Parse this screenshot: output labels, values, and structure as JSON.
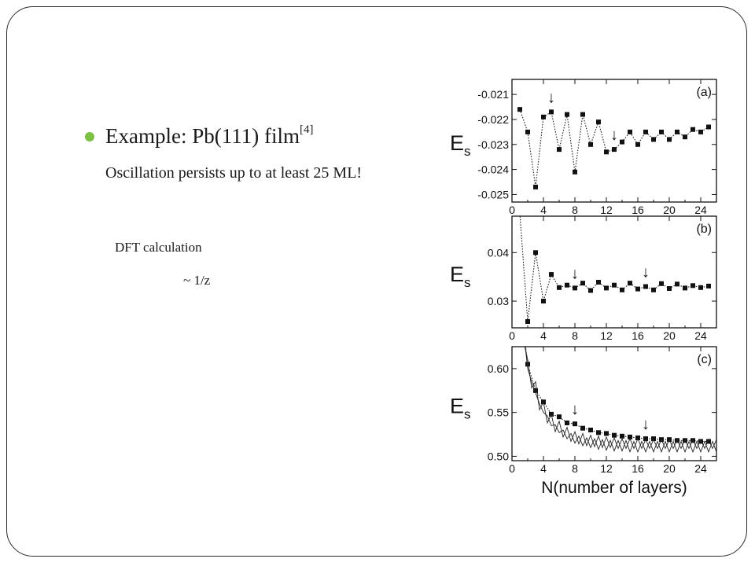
{
  "slide": {
    "bullet_main": "Example: Pb(111) film",
    "bullet_ref": "[4]",
    "subline": "Oscillation  persists up to at least 25 ML!",
    "dft_label": "DFT calculation",
    "approx_label": "~ 1/z",
    "bullet_color": "#7cc242"
  },
  "chart_data": [
    {
      "type": "line",
      "panel_label": "(a)",
      "ylabel_main": "E",
      "ylabel_sub": "s",
      "xlim": [
        0,
        26
      ],
      "ylim": [
        -0.0253,
        -0.0204
      ],
      "xticks": [
        0,
        4,
        8,
        12,
        16,
        20,
        24
      ],
      "xtick_labels": [
        "0",
        "4",
        "8",
        "12",
        "16",
        "20",
        "24"
      ],
      "yticks": [
        -0.025,
        -0.024,
        -0.023,
        -0.022,
        -0.021
      ],
      "ytick_labels": [
        "-0.025",
        "-0.024",
        "-0.023",
        "-0.022",
        "-0.021"
      ],
      "arrows_x": [
        5,
        13
      ],
      "arrow_glyph": "↓",
      "series": [
        {
          "style": "dotted-squares",
          "x": [
            1,
            2,
            3,
            4,
            5,
            6,
            7,
            8,
            9,
            10,
            11,
            12,
            13,
            14,
            15,
            16,
            17,
            18,
            19,
            20,
            21,
            22,
            23,
            24,
            25
          ],
          "y": [
            -0.0216,
            -0.0225,
            -0.0247,
            -0.0219,
            -0.0217,
            -0.0232,
            -0.0218,
            -0.0241,
            -0.0218,
            -0.023,
            -0.0221,
            -0.0233,
            -0.0232,
            -0.0229,
            -0.0225,
            -0.023,
            -0.0225,
            -0.0228,
            -0.0225,
            -0.0228,
            -0.0225,
            -0.0227,
            -0.0224,
            -0.0225,
            -0.0223
          ]
        }
      ]
    },
    {
      "type": "line",
      "panel_label": "(b)",
      "ylabel_main": "E",
      "ylabel_sub": "s",
      "xlim": [
        0,
        26
      ],
      "ylim": [
        0.0245,
        0.0475
      ],
      "xticks": [
        0,
        4,
        8,
        12,
        16,
        20,
        24
      ],
      "xtick_labels": [
        "0",
        "4",
        "8",
        "12",
        "16",
        "20",
        "24"
      ],
      "yticks": [
        0.03,
        0.04
      ],
      "ytick_labels": [
        "0.03",
        "0.04"
      ],
      "arrows_x": [
        8,
        17
      ],
      "arrow_glyph": "↓",
      "series": [
        {
          "style": "dotted-squares",
          "x": [
            1,
            2,
            3,
            4,
            5,
            6,
            7,
            8,
            9,
            10,
            11,
            12,
            13,
            14,
            15,
            16,
            17,
            18,
            19,
            20,
            21,
            22,
            23,
            24,
            25
          ],
          "y": [
            0.048,
            0.0258,
            0.04,
            0.03,
            0.0355,
            0.0328,
            0.0333,
            0.0327,
            0.0337,
            0.0322,
            0.0339,
            0.0327,
            0.0333,
            0.0323,
            0.0337,
            0.0325,
            0.033,
            0.0323,
            0.0336,
            0.0326,
            0.0335,
            0.0327,
            0.0332,
            0.0328,
            0.0331
          ]
        }
      ]
    },
    {
      "type": "line",
      "panel_label": "(c)",
      "ylabel_main": "E",
      "ylabel_sub": "s",
      "xlabel": "N(number of layers)",
      "xlim": [
        0,
        26
      ],
      "ylim": [
        0.495,
        0.625
      ],
      "xticks": [
        0,
        4,
        8,
        12,
        16,
        20,
        24
      ],
      "xtick_labels": [
        "0",
        "4",
        "8",
        "12",
        "16",
        "20",
        "24"
      ],
      "yticks": [
        0.5,
        0.55,
        0.6
      ],
      "ytick_labels": [
        "0.50",
        "0.55",
        "0.60"
      ],
      "arrows_x": [
        8,
        17
      ],
      "arrow_glyph": "↓",
      "series": [
        {
          "style": "dotted-squares",
          "x": [
            1,
            2,
            3,
            4,
            5,
            6,
            7,
            8,
            9,
            10,
            11,
            12,
            13,
            14,
            15,
            16,
            17,
            18,
            19,
            20,
            21,
            22,
            23,
            24,
            25
          ],
          "y": [
            0.68,
            0.605,
            0.575,
            0.562,
            0.548,
            0.545,
            0.538,
            0.537,
            0.532,
            0.53,
            0.527,
            0.526,
            0.524,
            0.523,
            0.522,
            0.521,
            0.52,
            0.52,
            0.519,
            0.519,
            0.518,
            0.518,
            0.518,
            0.517,
            0.517
          ]
        },
        {
          "style": "solid-oscillating",
          "x": [
            1.0,
            1.5,
            2.0,
            2.5,
            3.0,
            3.5,
            4.0,
            4.5,
            5.0,
            5.5,
            6.0,
            6.5,
            7.0,
            7.5,
            8.0,
            8.5,
            9.0,
            9.5,
            10.0,
            10.5,
            11.0,
            11.5,
            12.0,
            12.5,
            13.0,
            13.5,
            14.0,
            14.5,
            15.0,
            15.5,
            16.0,
            16.5,
            17.0,
            17.5,
            18.0,
            18.5,
            19.0,
            19.5,
            20.0,
            20.5,
            21.0,
            21.5,
            22.0,
            22.5,
            23.0,
            23.5,
            24.0,
            24.5,
            25.0,
            25.5,
            26.0
          ],
          "y": [
            0.69,
            0.63,
            0.61,
            0.578,
            0.585,
            0.553,
            0.562,
            0.538,
            0.548,
            0.528,
            0.54,
            0.522,
            0.533,
            0.517,
            0.528,
            0.514,
            0.526,
            0.512,
            0.524,
            0.511,
            0.523,
            0.51,
            0.522,
            0.51,
            0.521,
            0.509,
            0.52,
            0.509,
            0.52,
            0.509,
            0.52,
            0.509,
            0.519,
            0.509,
            0.519,
            0.509,
            0.519,
            0.509,
            0.519,
            0.509,
            0.519,
            0.509,
            0.519,
            0.509,
            0.519,
            0.509,
            0.519,
            0.509,
            0.519,
            0.509,
            0.519
          ]
        },
        {
          "style": "solid-oscillating",
          "x": [
            1.0,
            1.5,
            2.0,
            2.5,
            3.0,
            3.5,
            4.0,
            4.5,
            5.0,
            5.5,
            6.0,
            6.5,
            7.0,
            7.5,
            8.0,
            8.5,
            9.0,
            9.5,
            10.0,
            10.5,
            11.0,
            11.5,
            12.0,
            12.5,
            13.0,
            13.5,
            14.0,
            14.5,
            15.0,
            15.5,
            16.0,
            16.5,
            17.0,
            17.5,
            18.0,
            18.5,
            19.0,
            19.5,
            20.0,
            20.5,
            21.0,
            21.5,
            22.0,
            22.5,
            23.0,
            23.5,
            24.0,
            24.5,
            25.0,
            25.5,
            26.0
          ],
          "y": [
            0.67,
            0.64,
            0.6,
            0.585,
            0.572,
            0.56,
            0.55,
            0.546,
            0.535,
            0.536,
            0.527,
            0.53,
            0.52,
            0.526,
            0.515,
            0.523,
            0.512,
            0.521,
            0.51,
            0.52,
            0.508,
            0.519,
            0.507,
            0.518,
            0.506,
            0.518,
            0.506,
            0.518,
            0.505,
            0.517,
            0.505,
            0.517,
            0.505,
            0.517,
            0.505,
            0.517,
            0.505,
            0.517,
            0.505,
            0.517,
            0.505,
            0.517,
            0.505,
            0.517,
            0.505,
            0.517,
            0.505,
            0.517,
            0.505,
            0.517,
            0.505
          ]
        }
      ]
    }
  ]
}
